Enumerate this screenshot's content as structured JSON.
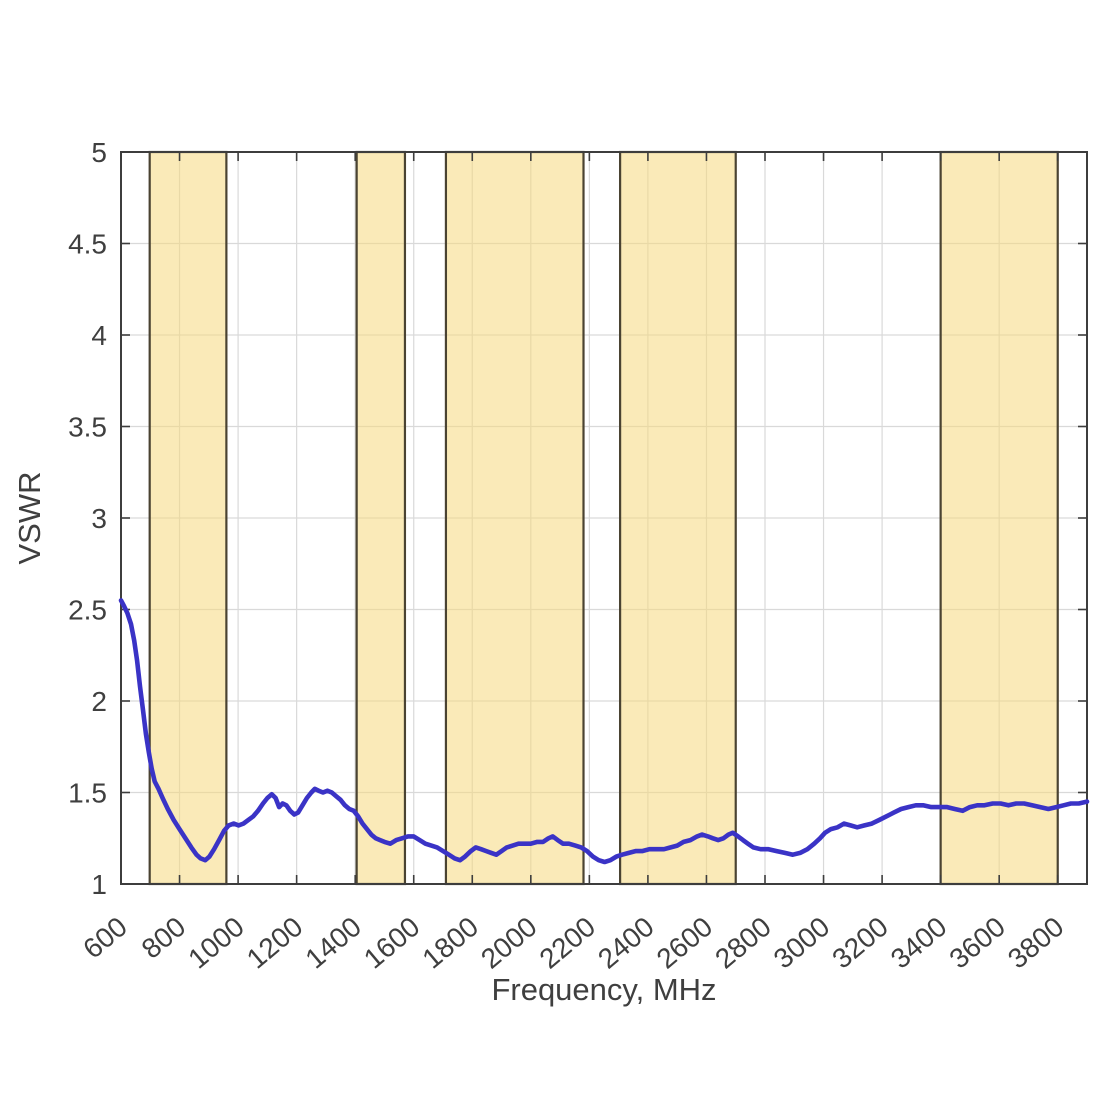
{
  "chart_data": {
    "type": "line",
    "title": "",
    "xlabel": "Frequency, MHz",
    "ylabel": "VSWR",
    "xlim": [
      600,
      3900
    ],
    "ylim": [
      1,
      5
    ],
    "x_ticks": [
      600,
      800,
      1000,
      1200,
      1400,
      1600,
      1800,
      2000,
      2200,
      2400,
      2600,
      2800,
      3000,
      3200,
      3400,
      3600,
      3800
    ],
    "y_ticks": [
      1,
      1.5,
      2,
      2.5,
      3,
      3.5,
      4,
      4.5,
      5
    ],
    "grid": true,
    "x_tick_rotation": -40,
    "legend": "none",
    "colors": {
      "curve": "#3a33c6",
      "band_fill": "#f5d87e",
      "band_edge": "#4a4332",
      "grid": "#d9d9d9",
      "axis": "#3d3d3d",
      "text": "#3f3f3f",
      "background": "#ffffff"
    },
    "highlight_bands": [
      {
        "start": 698,
        "end": 960
      },
      {
        "start": 1405,
        "end": 1570
      },
      {
        "start": 1710,
        "end": 2180
      },
      {
        "start": 2305,
        "end": 2700
      },
      {
        "start": 3400,
        "end": 3800
      }
    ],
    "series": [
      {
        "name": "VSWR",
        "points": [
          [
            600,
            2.55
          ],
          [
            610,
            2.52
          ],
          [
            622,
            2.48
          ],
          [
            634,
            2.42
          ],
          [
            645,
            2.33
          ],
          [
            655,
            2.22
          ],
          [
            665,
            2.08
          ],
          [
            675,
            1.95
          ],
          [
            685,
            1.82
          ],
          [
            695,
            1.72
          ],
          [
            705,
            1.63
          ],
          [
            715,
            1.56
          ],
          [
            728,
            1.52
          ],
          [
            745,
            1.46
          ],
          [
            760,
            1.41
          ],
          [
            780,
            1.35
          ],
          [
            800,
            1.3
          ],
          [
            820,
            1.25
          ],
          [
            840,
            1.2
          ],
          [
            858,
            1.16
          ],
          [
            872,
            1.14
          ],
          [
            888,
            1.13
          ],
          [
            902,
            1.15
          ],
          [
            918,
            1.19
          ],
          [
            935,
            1.24
          ],
          [
            952,
            1.29
          ],
          [
            968,
            1.32
          ],
          [
            985,
            1.33
          ],
          [
            1002,
            1.32
          ],
          [
            1018,
            1.33
          ],
          [
            1035,
            1.35
          ],
          [
            1052,
            1.37
          ],
          [
            1068,
            1.4
          ],
          [
            1085,
            1.44
          ],
          [
            1100,
            1.47
          ],
          [
            1115,
            1.49
          ],
          [
            1128,
            1.47
          ],
          [
            1140,
            1.42
          ],
          [
            1152,
            1.44
          ],
          [
            1165,
            1.43
          ],
          [
            1178,
            1.4
          ],
          [
            1192,
            1.38
          ],
          [
            1205,
            1.39
          ],
          [
            1220,
            1.43
          ],
          [
            1235,
            1.47
          ],
          [
            1250,
            1.5
          ],
          [
            1262,
            1.52
          ],
          [
            1275,
            1.51
          ],
          [
            1290,
            1.5
          ],
          [
            1305,
            1.51
          ],
          [
            1320,
            1.5
          ],
          [
            1335,
            1.48
          ],
          [
            1350,
            1.46
          ],
          [
            1365,
            1.43
          ],
          [
            1380,
            1.41
          ],
          [
            1395,
            1.4
          ],
          [
            1410,
            1.37
          ],
          [
            1425,
            1.33
          ],
          [
            1440,
            1.3
          ],
          [
            1455,
            1.27
          ],
          [
            1470,
            1.25
          ],
          [
            1485,
            1.24
          ],
          [
            1500,
            1.23
          ],
          [
            1520,
            1.22
          ],
          [
            1540,
            1.24
          ],
          [
            1560,
            1.25
          ],
          [
            1580,
            1.26
          ],
          [
            1600,
            1.26
          ],
          [
            1620,
            1.24
          ],
          [
            1640,
            1.22
          ],
          [
            1660,
            1.21
          ],
          [
            1680,
            1.2
          ],
          [
            1700,
            1.18
          ],
          [
            1720,
            1.16
          ],
          [
            1740,
            1.14
          ],
          [
            1758,
            1.13
          ],
          [
            1775,
            1.15
          ],
          [
            1795,
            1.18
          ],
          [
            1812,
            1.2
          ],
          [
            1830,
            1.19
          ],
          [
            1848,
            1.18
          ],
          [
            1865,
            1.17
          ],
          [
            1882,
            1.16
          ],
          [
            1900,
            1.18
          ],
          [
            1918,
            1.2
          ],
          [
            1938,
            1.21
          ],
          [
            1958,
            1.22
          ],
          [
            1980,
            1.22
          ],
          [
            2000,
            1.22
          ],
          [
            2022,
            1.23
          ],
          [
            2042,
            1.23
          ],
          [
            2060,
            1.25
          ],
          [
            2075,
            1.26
          ],
          [
            2092,
            1.24
          ],
          [
            2110,
            1.22
          ],
          [
            2130,
            1.22
          ],
          [
            2152,
            1.21
          ],
          [
            2172,
            1.2
          ],
          [
            2192,
            1.18
          ],
          [
            2212,
            1.15
          ],
          [
            2232,
            1.13
          ],
          [
            2252,
            1.12
          ],
          [
            2272,
            1.13
          ],
          [
            2292,
            1.15
          ],
          [
            2312,
            1.16
          ],
          [
            2335,
            1.17
          ],
          [
            2358,
            1.18
          ],
          [
            2380,
            1.18
          ],
          [
            2405,
            1.19
          ],
          [
            2430,
            1.19
          ],
          [
            2455,
            1.19
          ],
          [
            2478,
            1.2
          ],
          [
            2500,
            1.21
          ],
          [
            2522,
            1.23
          ],
          [
            2545,
            1.24
          ],
          [
            2568,
            1.26
          ],
          [
            2585,
            1.27
          ],
          [
            2605,
            1.26
          ],
          [
            2622,
            1.25
          ],
          [
            2640,
            1.24
          ],
          [
            2658,
            1.25
          ],
          [
            2675,
            1.27
          ],
          [
            2690,
            1.28
          ],
          [
            2708,
            1.26
          ],
          [
            2725,
            1.24
          ],
          [
            2742,
            1.22
          ],
          [
            2760,
            1.2
          ],
          [
            2785,
            1.19
          ],
          [
            2812,
            1.19
          ],
          [
            2840,
            1.18
          ],
          [
            2868,
            1.17
          ],
          [
            2895,
            1.16
          ],
          [
            2920,
            1.17
          ],
          [
            2945,
            1.19
          ],
          [
            2968,
            1.22
          ],
          [
            2988,
            1.25
          ],
          [
            3005,
            1.28
          ],
          [
            3025,
            1.3
          ],
          [
            3048,
            1.31
          ],
          [
            3070,
            1.33
          ],
          [
            3092,
            1.32
          ],
          [
            3115,
            1.31
          ],
          [
            3140,
            1.32
          ],
          [
            3165,
            1.33
          ],
          [
            3190,
            1.35
          ],
          [
            3215,
            1.37
          ],
          [
            3240,
            1.39
          ],
          [
            3265,
            1.41
          ],
          [
            3290,
            1.42
          ],
          [
            3315,
            1.43
          ],
          [
            3340,
            1.43
          ],
          [
            3368,
            1.42
          ],
          [
            3395,
            1.42
          ],
          [
            3422,
            1.42
          ],
          [
            3448,
            1.41
          ],
          [
            3475,
            1.4
          ],
          [
            3500,
            1.42
          ],
          [
            3525,
            1.43
          ],
          [
            3550,
            1.43
          ],
          [
            3578,
            1.44
          ],
          [
            3605,
            1.44
          ],
          [
            3632,
            1.43
          ],
          [
            3658,
            1.44
          ],
          [
            3685,
            1.44
          ],
          [
            3712,
            1.43
          ],
          [
            3740,
            1.42
          ],
          [
            3768,
            1.41
          ],
          [
            3795,
            1.42
          ],
          [
            3820,
            1.43
          ],
          [
            3845,
            1.44
          ],
          [
            3872,
            1.44
          ],
          [
            3900,
            1.45
          ]
        ]
      }
    ]
  }
}
